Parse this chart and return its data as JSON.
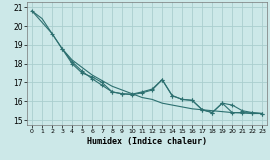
{
  "xlabel": "Humidex (Indice chaleur)",
  "xlim": [
    -0.5,
    23.5
  ],
  "ylim": [
    14.75,
    21.3
  ],
  "yticks": [
    15,
    16,
    17,
    18,
    19,
    20,
    21
  ],
  "xticks": [
    0,
    1,
    2,
    3,
    4,
    5,
    6,
    7,
    8,
    9,
    10,
    11,
    12,
    13,
    14,
    15,
    16,
    17,
    18,
    19,
    20,
    21,
    22,
    23
  ],
  "background_color": "#cce8e8",
  "grid_color": "#aacece",
  "line_color": "#2d7070",
  "line1_x": [
    0,
    1,
    2,
    3,
    4,
    5,
    6,
    7,
    8,
    9,
    10,
    11,
    12,
    13,
    14,
    15,
    16,
    17,
    18,
    19,
    20,
    21,
    22,
    23
  ],
  "line1_y": [
    20.8,
    20.4,
    19.6,
    18.8,
    18.2,
    17.8,
    17.4,
    17.1,
    16.8,
    16.6,
    16.4,
    16.2,
    16.1,
    15.9,
    15.8,
    15.7,
    15.6,
    15.55,
    15.5,
    15.45,
    15.4,
    15.38,
    15.35,
    15.35
  ],
  "line2_x": [
    0,
    2,
    3,
    4,
    5,
    6,
    7,
    8,
    9,
    10,
    11,
    12,
    13,
    14,
    15,
    16,
    17,
    18,
    19,
    20,
    21,
    22,
    23
  ],
  "line2_y": [
    20.8,
    19.6,
    18.8,
    18.1,
    17.6,
    17.2,
    16.85,
    16.5,
    16.4,
    16.35,
    16.45,
    16.6,
    17.15,
    16.3,
    16.1,
    16.05,
    15.55,
    15.4,
    15.9,
    15.8,
    15.5,
    15.4,
    15.35
  ],
  "line3_x": [
    3,
    4,
    5,
    6,
    7,
    8,
    9,
    10,
    11,
    12,
    13,
    14,
    15,
    16,
    17,
    18,
    19,
    20,
    21,
    22,
    23
  ],
  "line3_y": [
    18.8,
    18.0,
    17.5,
    17.3,
    17.0,
    16.5,
    16.4,
    16.38,
    16.5,
    16.65,
    17.15,
    16.3,
    16.1,
    16.05,
    15.55,
    15.4,
    15.9,
    15.4,
    15.4,
    15.38,
    15.35
  ]
}
